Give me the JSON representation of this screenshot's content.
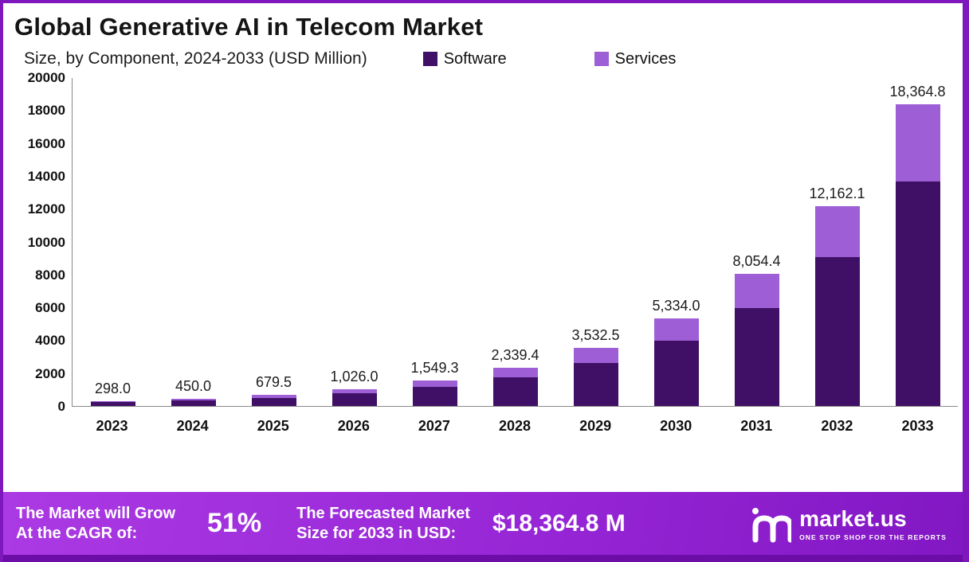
{
  "header": {
    "title": "Global Generative AI in Telecom Market",
    "subtitle": "Size, by Component, 2024-2033 (USD Million)"
  },
  "legend": [
    {
      "label": "Software",
      "color": "#400f66"
    },
    {
      "label": "Services",
      "color": "#9e5fd6"
    }
  ],
  "chart_data": {
    "type": "bar",
    "stacked": true,
    "title": "Global Generative AI in Telecom Market Size, by Component, 2024-2033 (USD Million)",
    "categories": [
      "2023",
      "2024",
      "2025",
      "2026",
      "2027",
      "2028",
      "2029",
      "2030",
      "2031",
      "2032",
      "2033"
    ],
    "series": [
      {
        "name": "Software",
        "color": "#400f66",
        "values": [
          222.0,
          335.0,
          506.0,
          764.0,
          1154.0,
          1742.0,
          2631.0,
          3960.0,
          5980.0,
          9040.0,
          13660.0
        ]
      },
      {
        "name": "Services",
        "color": "#9e5fd6",
        "values": [
          76.0,
          115.0,
          173.5,
          262.0,
          395.3,
          597.4,
          901.5,
          1374.0,
          2074.4,
          3122.1,
          4704.8
        ]
      }
    ],
    "totals": [
      298.0,
      450.0,
      679.5,
      1026.0,
      1549.3,
      2339.4,
      3532.5,
      5334.0,
      8054.4,
      12162.1,
      18364.8
    ],
    "total_labels": [
      "298.0",
      "450.0",
      "679.5",
      "1,026.0",
      "1,549.3",
      "2,339.4",
      "3,532.5",
      "5,334.0",
      "8,054.4",
      "12,162.1",
      "18,364.8"
    ],
    "xlabel": "",
    "ylabel": "",
    "ylim": [
      0,
      20000
    ],
    "y_ticks": [
      0,
      2000,
      4000,
      6000,
      8000,
      10000,
      12000,
      14000,
      16000,
      18000,
      20000
    ],
    "grid": false,
    "legend_position": "top"
  },
  "banner": {
    "cagr_label_line1": "The Market will Grow",
    "cagr_label_line2": "At the CAGR of:",
    "cagr_value": "51%",
    "forecast_label_line1": "The Forecasted Market",
    "forecast_label_line2": "Size for 2033 in USD:",
    "forecast_value": "$18,364.8 M",
    "brand_name": "market.us",
    "brand_tagline": "ONE STOP SHOP FOR THE REPORTS"
  }
}
